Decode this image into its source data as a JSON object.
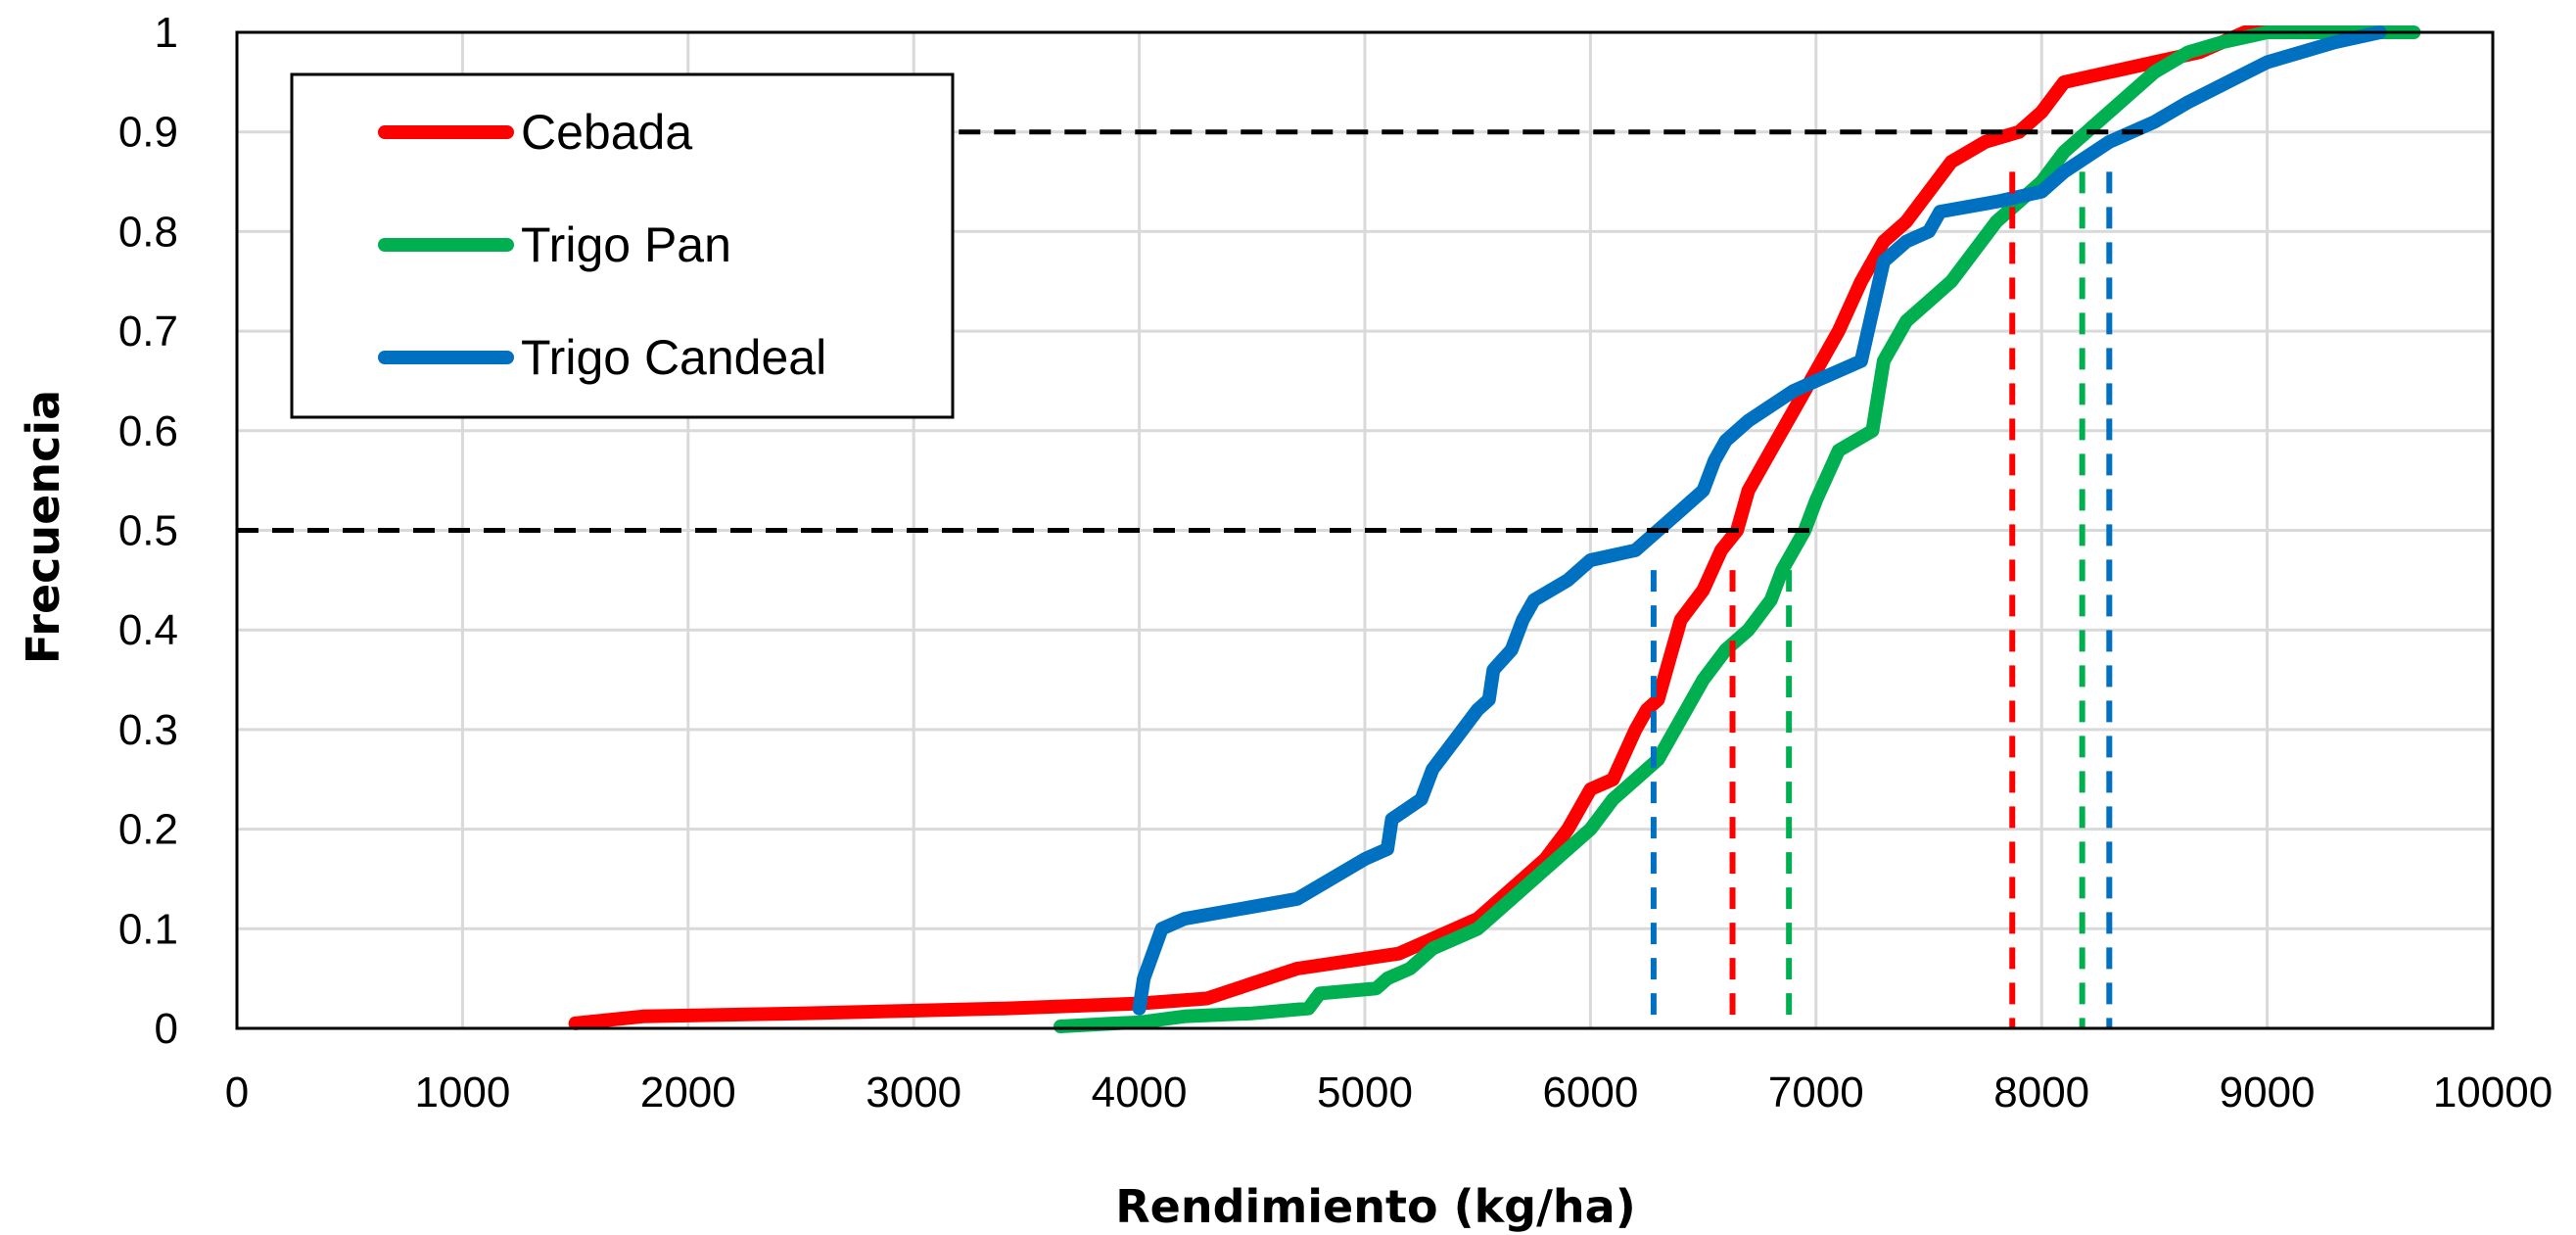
{
  "chart_data": {
    "type": "line",
    "title": "",
    "xlabel": "Rendimiento (kg/ha)",
    "ylabel": "Frecuencia",
    "xlim": [
      0,
      10000
    ],
    "ylim": [
      0,
      1
    ],
    "x_ticks": [
      "0",
      "1000",
      "2000",
      "3000",
      "4000",
      "5000",
      "6000",
      "7000",
      "8000",
      "9000",
      "10000"
    ],
    "y_ticks": [
      "0",
      "0.1",
      "0.2",
      "0.3",
      "0.4",
      "0.5",
      "0.6",
      "0.7",
      "0.8",
      "0.9",
      "1"
    ],
    "grid": true,
    "legend_position": "top-left",
    "series": [
      {
        "name": "Cebada",
        "color": "#ff0000",
        "points": [
          [
            1500,
            0.005
          ],
          [
            1800,
            0.012
          ],
          [
            2500,
            0.015
          ],
          [
            3400,
            0.02
          ],
          [
            4000,
            0.025
          ],
          [
            4300,
            0.03
          ],
          [
            4700,
            0.06
          ],
          [
            5000,
            0.07
          ],
          [
            5150,
            0.075
          ],
          [
            5300,
            0.09
          ],
          [
            5500,
            0.11
          ],
          [
            5700,
            0.15
          ],
          [
            5800,
            0.17
          ],
          [
            5900,
            0.2
          ],
          [
            5950,
            0.22
          ],
          [
            6000,
            0.24
          ],
          [
            6100,
            0.25
          ],
          [
            6200,
            0.3
          ],
          [
            6250,
            0.32
          ],
          [
            6300,
            0.33
          ],
          [
            6350,
            0.37
          ],
          [
            6400,
            0.41
          ],
          [
            6500,
            0.44
          ],
          [
            6580,
            0.48
          ],
          [
            6650,
            0.5
          ],
          [
            6700,
            0.54
          ],
          [
            6800,
            0.58
          ],
          [
            6900,
            0.62
          ],
          [
            7000,
            0.66
          ],
          [
            7100,
            0.7
          ],
          [
            7200,
            0.75
          ],
          [
            7300,
            0.79
          ],
          [
            7400,
            0.81
          ],
          [
            7500,
            0.84
          ],
          [
            7600,
            0.87
          ],
          [
            7750,
            0.89
          ],
          [
            7900,
            0.9
          ],
          [
            8000,
            0.92
          ],
          [
            8100,
            0.95
          ],
          [
            8300,
            0.96
          ],
          [
            8500,
            0.97
          ],
          [
            8700,
            0.98
          ],
          [
            8900,
            1.0
          ],
          [
            9100,
            1.0
          ]
        ]
      },
      {
        "name": "Trigo Pan",
        "color": "#00b050",
        "points": [
          [
            3650,
            0.002
          ],
          [
            3900,
            0.005
          ],
          [
            4000,
            0.006
          ],
          [
            4200,
            0.012
          ],
          [
            4500,
            0.015
          ],
          [
            4750,
            0.02
          ],
          [
            4800,
            0.035
          ],
          [
            5050,
            0.04
          ],
          [
            5100,
            0.05
          ],
          [
            5200,
            0.06
          ],
          [
            5300,
            0.08
          ],
          [
            5400,
            0.09
          ],
          [
            5500,
            0.1
          ],
          [
            5600,
            0.12
          ],
          [
            5700,
            0.14
          ],
          [
            5800,
            0.16
          ],
          [
            5900,
            0.18
          ],
          [
            6000,
            0.2
          ],
          [
            6100,
            0.23
          ],
          [
            6200,
            0.25
          ],
          [
            6300,
            0.27
          ],
          [
            6400,
            0.31
          ],
          [
            6500,
            0.35
          ],
          [
            6600,
            0.38
          ],
          [
            6700,
            0.4
          ],
          [
            6800,
            0.43
          ],
          [
            6850,
            0.46
          ],
          [
            6900,
            0.48
          ],
          [
            6950,
            0.5
          ],
          [
            7000,
            0.53
          ],
          [
            7100,
            0.58
          ],
          [
            7250,
            0.6
          ],
          [
            7300,
            0.67
          ],
          [
            7400,
            0.71
          ],
          [
            7500,
            0.73
          ],
          [
            7600,
            0.75
          ],
          [
            7700,
            0.78
          ],
          [
            7800,
            0.81
          ],
          [
            7900,
            0.83
          ],
          [
            8000,
            0.85
          ],
          [
            8100,
            0.88
          ],
          [
            8200,
            0.9
          ],
          [
            8300,
            0.92
          ],
          [
            8400,
            0.94
          ],
          [
            8500,
            0.96
          ],
          [
            8650,
            0.98
          ],
          [
            8800,
            0.99
          ],
          [
            9000,
            1.0
          ],
          [
            9650,
            1.0
          ]
        ]
      },
      {
        "name": "Trigo Candeal",
        "color": "#0070c0",
        "points": [
          [
            4000,
            0.02
          ],
          [
            4020,
            0.05
          ],
          [
            4100,
            0.1
          ],
          [
            4200,
            0.11
          ],
          [
            4700,
            0.13
          ],
          [
            5000,
            0.17
          ],
          [
            5100,
            0.18
          ],
          [
            5120,
            0.21
          ],
          [
            5250,
            0.23
          ],
          [
            5300,
            0.26
          ],
          [
            5400,
            0.29
          ],
          [
            5500,
            0.32
          ],
          [
            5550,
            0.33
          ],
          [
            5570,
            0.36
          ],
          [
            5650,
            0.38
          ],
          [
            5700,
            0.41
          ],
          [
            5750,
            0.43
          ],
          [
            5900,
            0.45
          ],
          [
            6000,
            0.47
          ],
          [
            6200,
            0.48
          ],
          [
            6300,
            0.5
          ],
          [
            6400,
            0.52
          ],
          [
            6500,
            0.54
          ],
          [
            6550,
            0.57
          ],
          [
            6600,
            0.59
          ],
          [
            6700,
            0.61
          ],
          [
            6900,
            0.64
          ],
          [
            7000,
            0.65
          ],
          [
            7200,
            0.67
          ],
          [
            7250,
            0.72
          ],
          [
            7300,
            0.77
          ],
          [
            7400,
            0.79
          ],
          [
            7500,
            0.8
          ],
          [
            7550,
            0.82
          ],
          [
            7800,
            0.83
          ],
          [
            8000,
            0.84
          ],
          [
            8100,
            0.86
          ],
          [
            8300,
            0.89
          ],
          [
            8500,
            0.91
          ],
          [
            8650,
            0.93
          ],
          [
            9000,
            0.97
          ],
          [
            9300,
            0.99
          ],
          [
            9500,
            1.0
          ]
        ]
      }
    ],
    "reference_lines": {
      "horizontal": [
        {
          "y": 0.5,
          "x_end": 7000
        },
        {
          "y": 0.9,
          "x_start": 3200,
          "x_end": 8450
        }
      ],
      "vertical": [
        {
          "x": 6280,
          "y_top": 0.46,
          "color": "#0070c0"
        },
        {
          "x": 6630,
          "y_top": 0.46,
          "color": "#ff0000"
        },
        {
          "x": 6880,
          "y_top": 0.46,
          "color": "#00b050"
        },
        {
          "x": 7870,
          "y_top": 0.86,
          "color": "#ff0000"
        },
        {
          "x": 8180,
          "y_top": 0.86,
          "color": "#00b050"
        },
        {
          "x": 8300,
          "y_top": 0.86,
          "color": "#0070c0"
        }
      ],
      "color": "#000000"
    }
  }
}
